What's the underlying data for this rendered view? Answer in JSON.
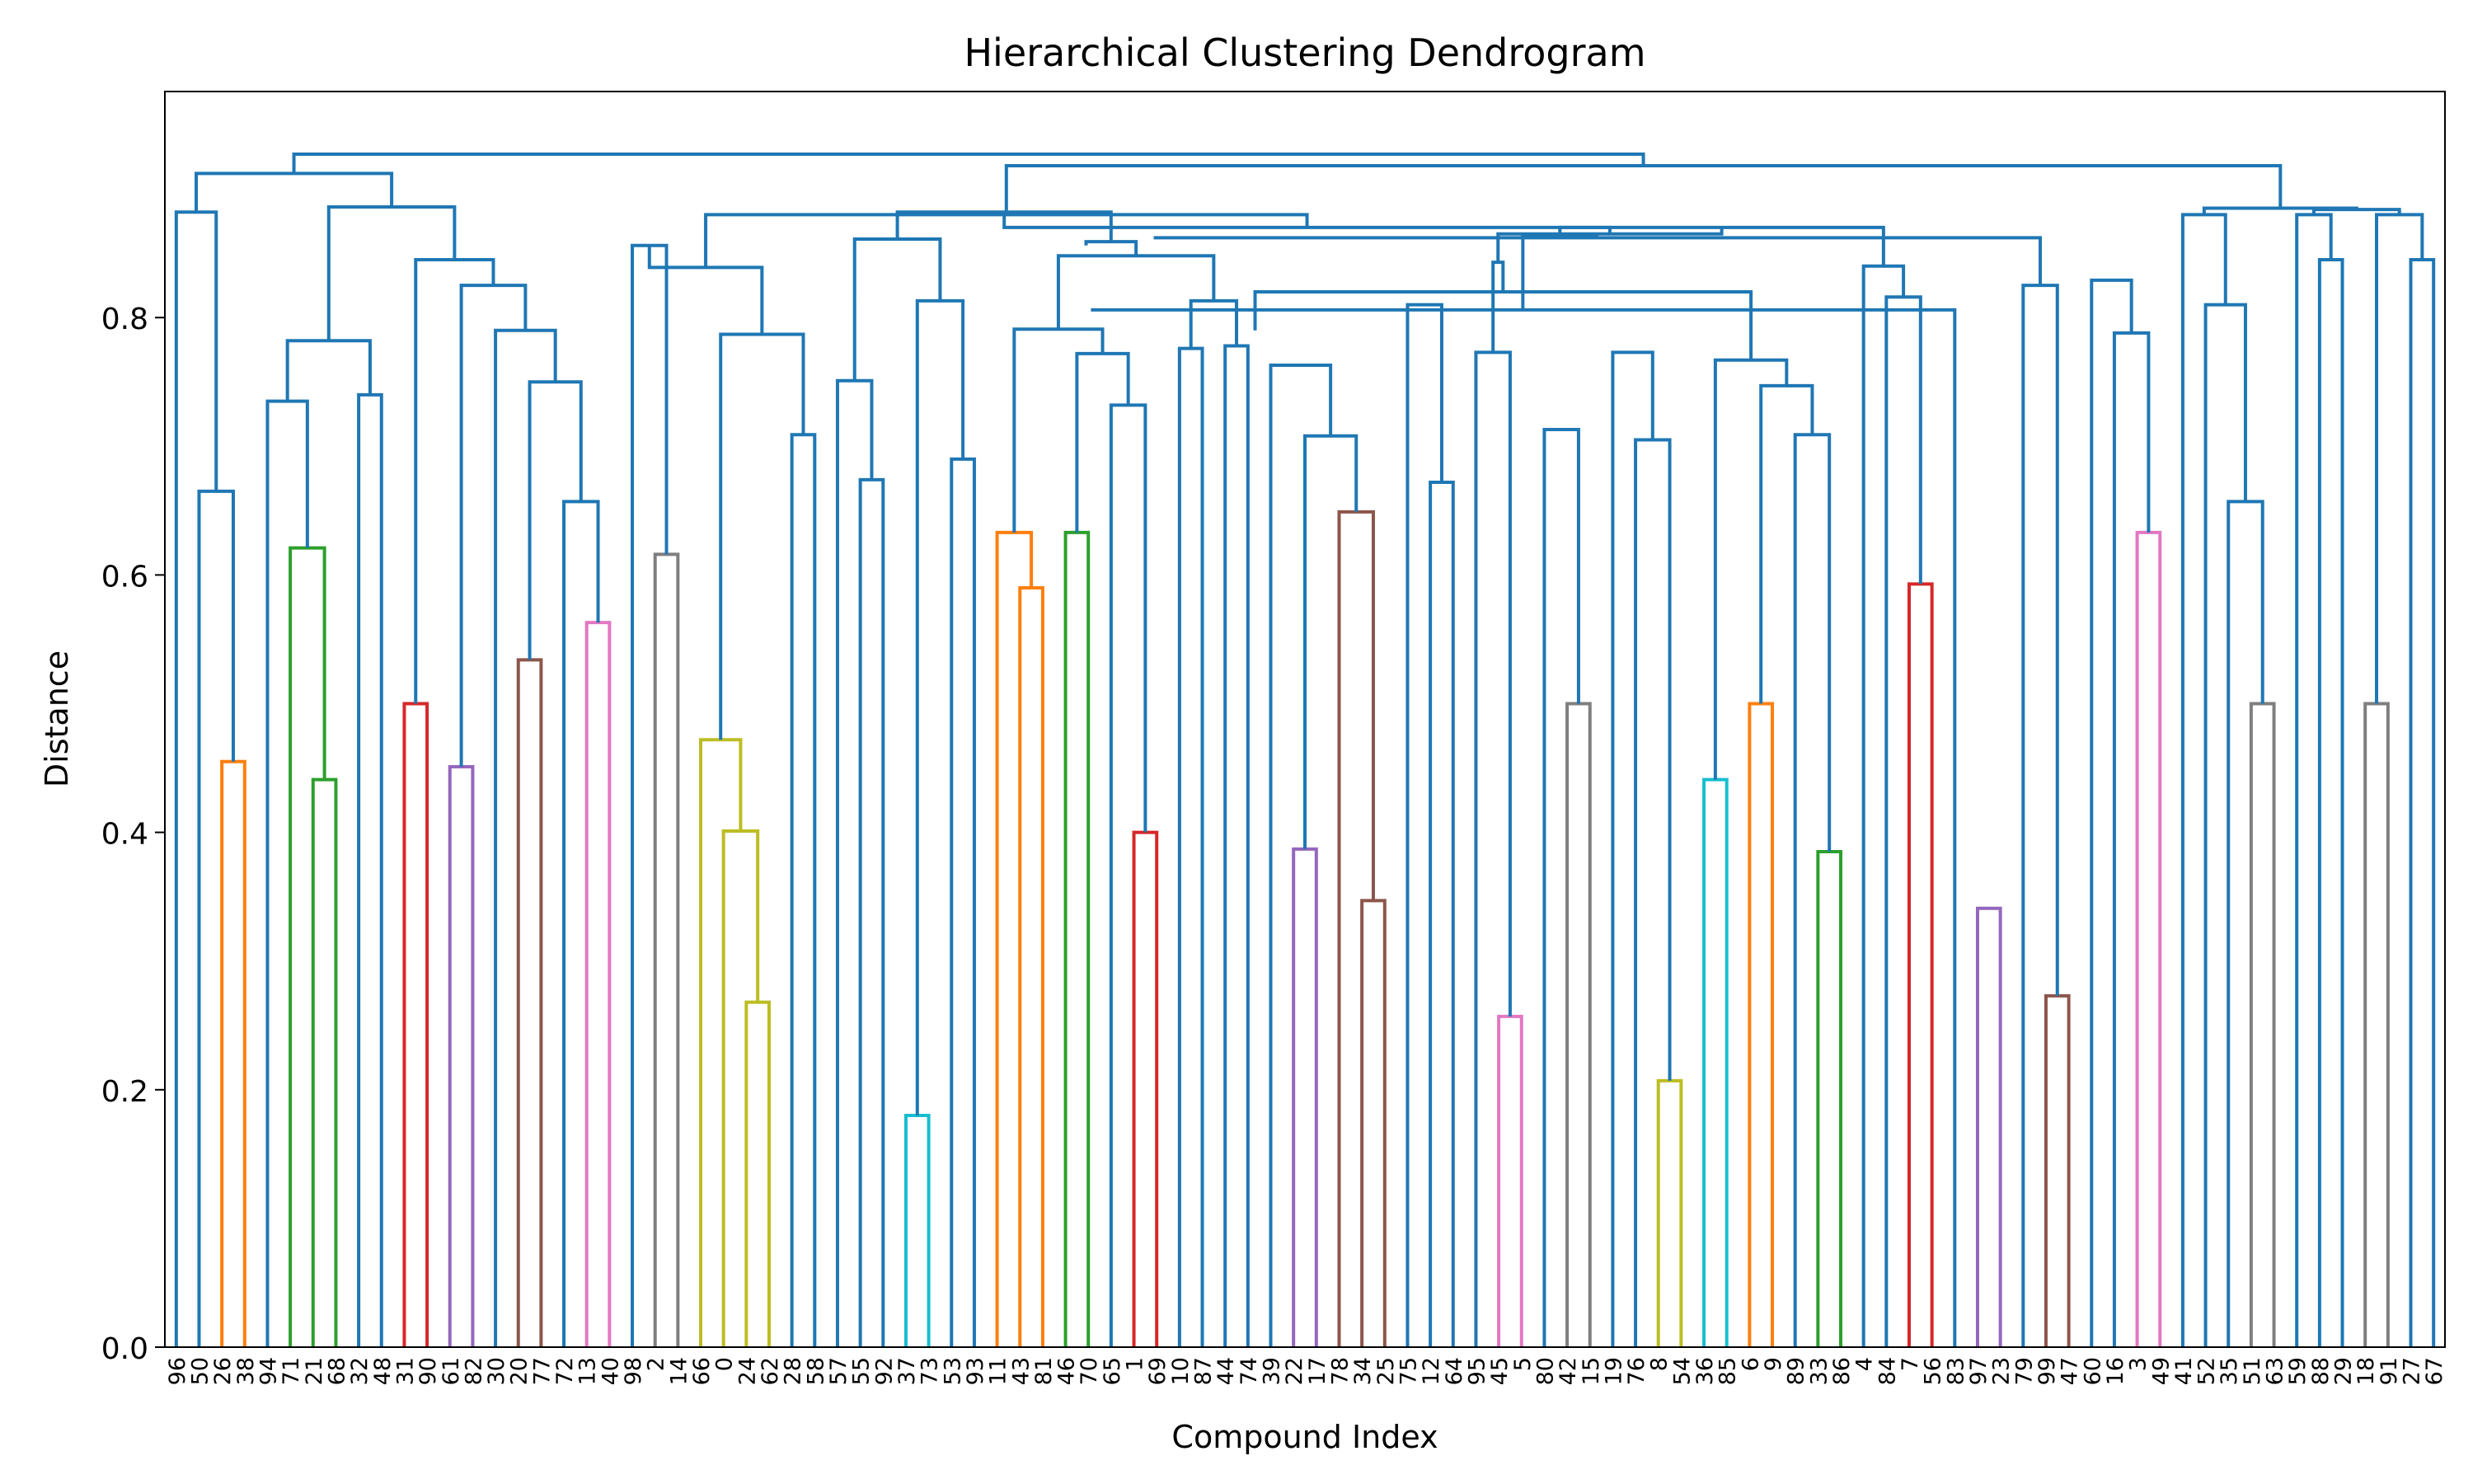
{
  "chart_data": {
    "type": "dendrogram",
    "title": "Hierarchical Clustering Dendrogram",
    "xlabel": "Compound Index",
    "ylabel": "Distance",
    "ylim": [
      0,
      0.98
    ],
    "yticks": [
      "0.0",
      "0.2",
      "0.4",
      "0.6",
      "0.8"
    ],
    "leaves": [
      "96",
      "50",
      "26",
      "38",
      "94",
      "71",
      "21",
      "68",
      "32",
      "48",
      "31",
      "90",
      "61",
      "82",
      "30",
      "20",
      "77",
      "72",
      "13",
      "40",
      "98",
      "2",
      "14",
      "66",
      "0",
      "24",
      "62",
      "28",
      "58",
      "57",
      "55",
      "92",
      "37",
      "73",
      "53",
      "93",
      "11",
      "43",
      "81",
      "46",
      "70",
      "65",
      "1",
      "69",
      "10",
      "87",
      "44",
      "74",
      "39",
      "22",
      "17",
      "78",
      "34",
      "25",
      "75",
      "12",
      "64",
      "95",
      "45",
      "5",
      "80",
      "42",
      "15",
      "19",
      "76",
      "8",
      "54",
      "36",
      "85",
      "6",
      "9",
      "89",
      "33",
      "86",
      "4",
      "84",
      "7",
      "56",
      "83",
      "97",
      "23",
      "79",
      "99",
      "47",
      "60",
      "16",
      "3",
      "49",
      "41",
      "52",
      "35",
      "51",
      "63",
      "59",
      "88",
      "29",
      "18",
      "91",
      "27",
      "67"
    ],
    "colors": {
      "above_threshold": "#1f77b4",
      "clusters": [
        "#ff7f0e",
        "#2ca02c",
        "#d62728",
        "#9467bd",
        "#8c564b",
        "#e377c2",
        "#7f7f7f",
        "#bcbd22",
        "#17becf"
      ]
    },
    "merges": [
      {
        "a": "96",
        "b": [
          "50",
          [
            "26",
            "38"
          ]
        ],
        "height": 0.882
      },
      {
        "a": "50",
        "b": [
          "26",
          "38"
        ],
        "height": 0.665
      },
      {
        "a": "26",
        "b": "38",
        "height": 0.455
      },
      {
        "a": [
          "94",
          [
            "71",
            [
              "21",
              "68"
            ]
          ]
        ],
        "b": [
          "32",
          "48"
        ],
        "height": 0.782
      },
      {
        "a": "94",
        "b": [
          "71",
          [
            "21",
            "68"
          ]
        ],
        "height": 0.735
      },
      {
        "a": "71",
        "b": [
          "21",
          "68"
        ],
        "height": 0.621
      },
      {
        "a": "21",
        "b": "68",
        "height": 0.441
      },
      {
        "a": "32",
        "b": "48",
        "height": 0.74
      },
      {
        "a": "31",
        "b": "90",
        "height": 0.5
      },
      {
        "a": "61",
        "b": "82",
        "height": 0.451
      },
      {
        "a": "20",
        "b": "77",
        "height": 0.534
      },
      {
        "a": "13",
        "b": "40",
        "height": 0.563
      },
      {
        "a": "72",
        "b": [
          "13",
          "40"
        ],
        "height": 0.657
      },
      {
        "a": "30",
        "b": "subtree",
        "height": 0.79
      },
      {
        "a": "2",
        "b": "14",
        "height": 0.616
      },
      {
        "a": "24",
        "b": "62",
        "height": 0.268
      },
      {
        "a": "0",
        "b": [
          "24",
          "62"
        ],
        "height": 0.401
      },
      {
        "a": "66",
        "b": [
          "0",
          [
            "24",
            "62"
          ]
        ],
        "height": 0.472
      },
      {
        "a": "28",
        "b": "58",
        "height": 0.709
      },
      {
        "a": "37",
        "b": "73",
        "height": 0.18
      },
      {
        "a": "55",
        "b": "92",
        "height": 0.674
      },
      {
        "a": "57",
        "b": [
          "55",
          "92"
        ],
        "height": 0.751
      },
      {
        "a": "53",
        "b": "93",
        "height": 0.69
      },
      {
        "a": "43",
        "b": "81",
        "height": 0.59
      },
      {
        "a": "11",
        "b": [
          "43",
          "81"
        ],
        "height": 0.633
      },
      {
        "a": "46",
        "b": "70",
        "height": 0.633
      },
      {
        "a": "1",
        "b": "69",
        "height": 0.4
      },
      {
        "a": "65",
        "b": [
          "1",
          "69"
        ],
        "height": 0.732
      },
      {
        "a": "10",
        "b": "87",
        "height": 0.776
      },
      {
        "a": "44",
        "b": "74",
        "height": 0.778
      },
      {
        "a": "17",
        "b": "78",
        "height": 0.387
      },
      {
        "a": "25",
        "b": "75",
        "height": 0.347
      },
      {
        "a": "34",
        "b": [
          "25",
          "75"
        ],
        "height": 0.649
      },
      {
        "a": "12",
        "b": "64",
        "height": 0.672
      },
      {
        "a": "5",
        "b": "80",
        "height": 0.257
      },
      {
        "a": "45",
        "b": [
          "5",
          "80"
        ],
        "height": 0.773
      },
      {
        "a": "19",
        "b": "76",
        "height": 0.5
      },
      {
        "a": "36",
        "b": "85",
        "height": 0.207
      },
      {
        "a": "89",
        "b": "33",
        "height": 0.441
      },
      {
        "a": "86",
        "b": "4",
        "height": 0.5
      },
      {
        "a": "7",
        "b": "56",
        "height": 0.385
      },
      {
        "a": "83",
        "b": "97",
        "height": 0.593
      },
      {
        "a": "99",
        "b": "47",
        "height": 0.729
      },
      {
        "a": "60",
        "b": "16",
        "height": 0.341
      },
      {
        "a": "49",
        "b": "41",
        "height": 0.273
      },
      {
        "a": "51",
        "b": "63",
        "height": 0.633
      },
      {
        "a": "18",
        "b": "91",
        "height": 0.5
      },
      {
        "a": "29",
        "b": [
          "18",
          "91"
        ],
        "height": 0.657
      },
      {
        "a": "27",
        "b": "67",
        "height": 0.845
      }
    ]
  }
}
